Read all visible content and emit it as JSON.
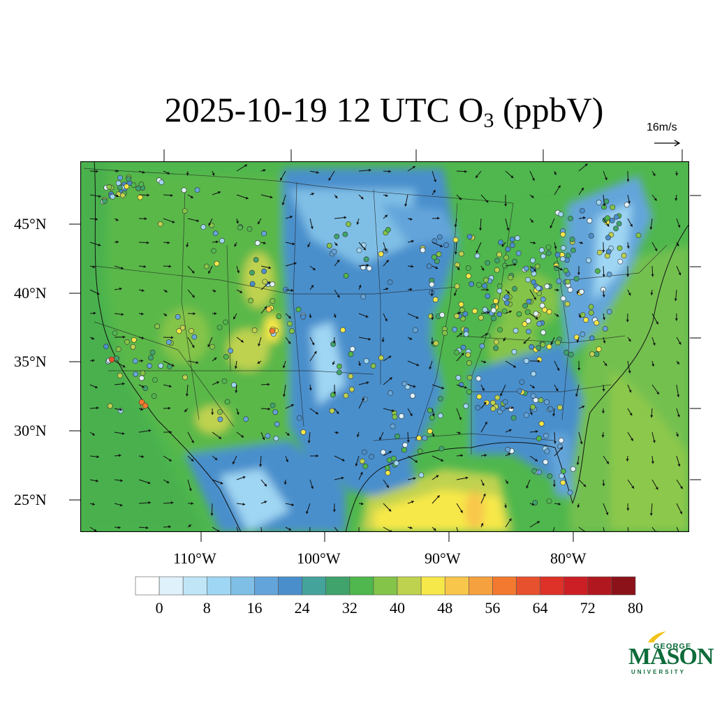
{
  "title": {
    "main": "2025-10-19 12 UTC O",
    "subscript": "3",
    "unit": " (ppbV)"
  },
  "wind_reference": {
    "label": "16m/s"
  },
  "lat_labels": [
    "45°N",
    "40°N",
    "35°N",
    "30°N",
    "25°N"
  ],
  "lon_labels": [
    "110°W",
    "100°W",
    "90°W",
    "80°W"
  ],
  "colorbar": {
    "labels": [
      "0",
      "8",
      "16",
      "24",
      "32",
      "40",
      "48",
      "56",
      "64",
      "72",
      "80"
    ],
    "colors": [
      "#ffffff",
      "#dff2fb",
      "#bfe5f7",
      "#9fd6f3",
      "#7fbfe6",
      "#63a5da",
      "#4a8fcc",
      "#44a39a",
      "#3fa36b",
      "#4fb74d",
      "#84c448",
      "#bfd24f",
      "#f7e84a",
      "#f8c64b",
      "#f6a13f",
      "#f2792f",
      "#e8512d",
      "#de3127",
      "#cc1f25",
      "#b0171f",
      "#8b1219"
    ]
  },
  "colors": {
    "land_blue": "#4a8fcc",
    "land_green": "#4fb74d",
    "ocean_green": "#52b455",
    "yellow": "#f7e84a"
  },
  "logo": {
    "top": "GEORGE",
    "main": "MASON",
    "bottom": "UNIVERSITY"
  }
}
